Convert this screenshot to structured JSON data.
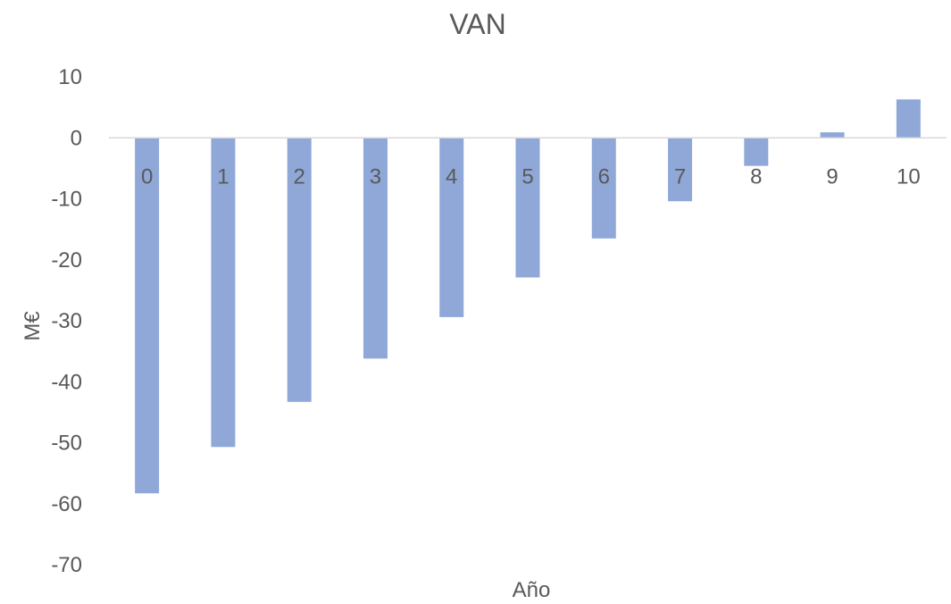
{
  "chart_data": {
    "type": "bar",
    "title": "VAN",
    "xlabel": "Año",
    "ylabel": "M€",
    "categories": [
      "0",
      "1",
      "2",
      "3",
      "4",
      "5",
      "6",
      "7",
      "8",
      "9",
      "10"
    ],
    "values": [
      -58.3,
      -50.7,
      -43.3,
      -36.2,
      -29.4,
      -22.9,
      -16.5,
      -10.4,
      -4.6,
      0.9,
      6.3
    ],
    "ylim": [
      -70,
      10
    ],
    "yticks": [
      "10",
      "0",
      "-10",
      "-20",
      "-30",
      "-40",
      "-50",
      "-60",
      "-70"
    ],
    "grid": false,
    "legend": "none",
    "bar_color": "#8FA8D8",
    "axis_color": "#D9D9D9"
  }
}
